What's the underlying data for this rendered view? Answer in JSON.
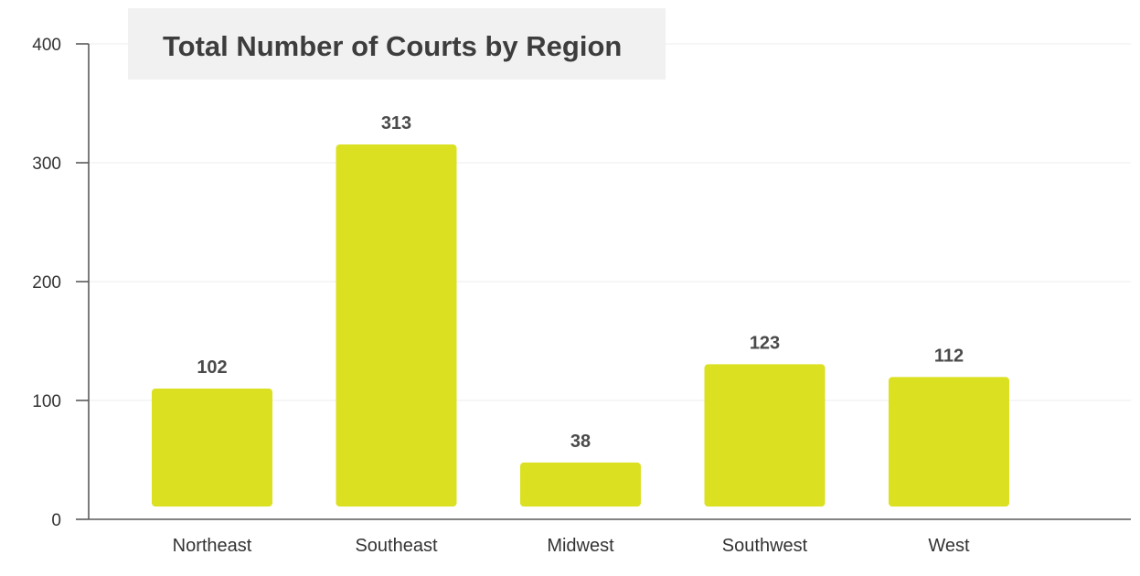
{
  "chart_data": {
    "type": "bar",
    "title": "Total Number of Courts by Region",
    "categories": [
      "Northeast",
      "Southeast",
      "Midwest",
      "Southwest",
      "West"
    ],
    "values": [
      102,
      313,
      38,
      123,
      112
    ],
    "data_labels": [
      "102",
      "313",
      "38",
      "123",
      "112"
    ],
    "ylim": [
      0,
      400
    ],
    "yticks": [
      0,
      100,
      200,
      300,
      400
    ],
    "ytick_labels": [
      "0",
      "100",
      "200",
      "300",
      "400"
    ],
    "xlabel": "",
    "ylabel": "",
    "grid": true,
    "legend": "none",
    "colors": {
      "bar": "#dbe021",
      "axis": "#5a5a5a",
      "grid": "#ededed",
      "title_background": "#f1f1f1"
    }
  }
}
